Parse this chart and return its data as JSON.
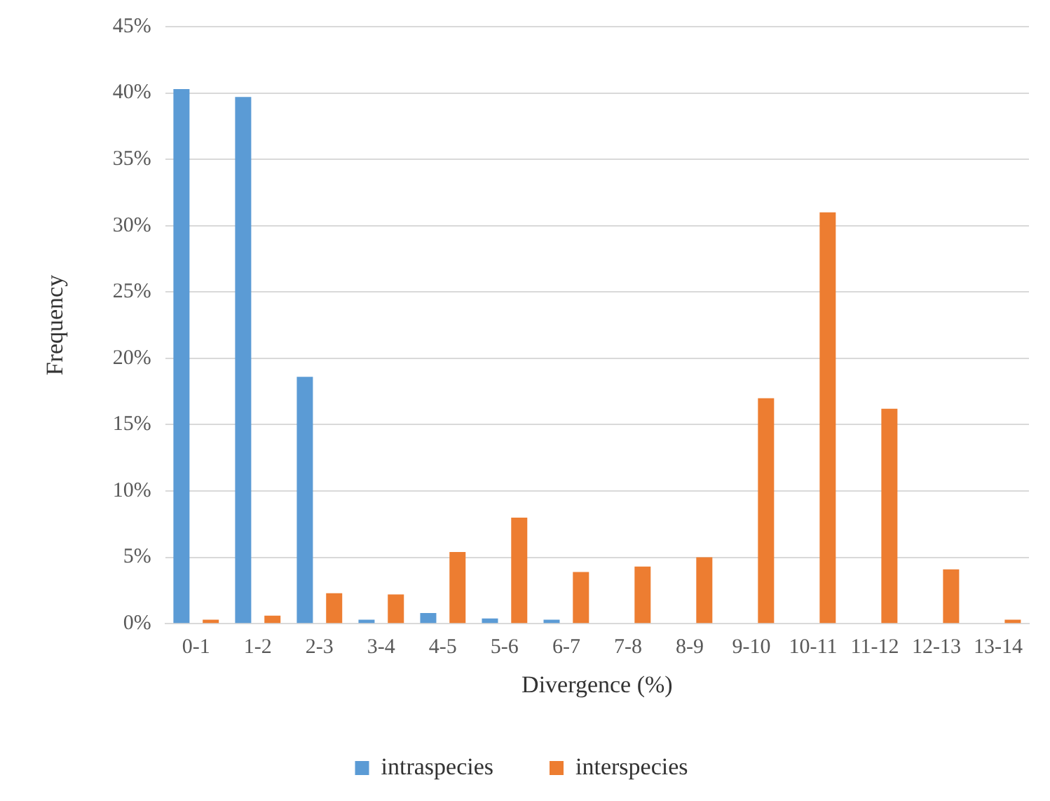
{
  "chart_data": {
    "type": "bar",
    "xlabel": "Divergence (%)",
    "ylabel": "Frequency",
    "categories": [
      "0-1",
      "1-2",
      "2-3",
      "3-4",
      "4-5",
      "5-6",
      "6-7",
      "7-8",
      "8-9",
      "9-10",
      "10-11",
      "11-12",
      "12-13",
      "13-14"
    ],
    "series": [
      {
        "name": "intraspecies",
        "color": "#5b9bd5",
        "values": [
          40.3,
          39.7,
          18.6,
          0.3,
          0.8,
          0.4,
          0.3,
          0,
          0,
          0,
          0,
          0,
          0,
          0
        ]
      },
      {
        "name": "interspecies",
        "color": "#ed7d31",
        "values": [
          0.3,
          0.6,
          2.3,
          2.2,
          5.4,
          8.0,
          3.9,
          4.3,
          5.0,
          17.0,
          31.0,
          16.2,
          4.1,
          0.3
        ]
      }
    ],
    "ylim": [
      0,
      45
    ],
    "yticks": [
      {
        "value": 0,
        "label": "0%"
      },
      {
        "value": 5,
        "label": "5%"
      },
      {
        "value": 10,
        "label": "10%"
      },
      {
        "value": 15,
        "label": "15%"
      },
      {
        "value": 20,
        "label": "20%"
      },
      {
        "value": 25,
        "label": "25%"
      },
      {
        "value": 30,
        "label": "30%"
      },
      {
        "value": 35,
        "label": "35%"
      },
      {
        "value": 40,
        "label": "40%"
      },
      {
        "value": 45,
        "label": "45%"
      }
    ],
    "grid": "y",
    "legend": "bottom"
  }
}
